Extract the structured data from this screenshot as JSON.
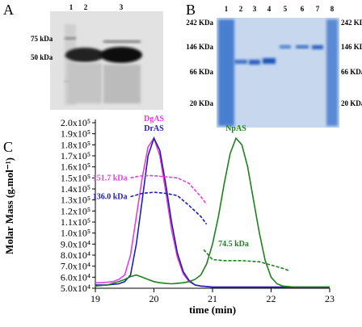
{
  "panels": {
    "a": {
      "letter": "A",
      "lanes": [
        "1",
        "2",
        "3"
      ],
      "markers": [
        "75 kDa",
        "50 kDa"
      ]
    },
    "b": {
      "letter": "B",
      "lanes": [
        "1",
        "2",
        "3",
        "4",
        "5",
        "6",
        "7",
        "8"
      ],
      "markers": [
        "242 KDa",
        "146 KDa",
        "66 KDa",
        "20 KDa"
      ]
    },
    "c": {
      "letter": "C"
    }
  },
  "chart_data": {
    "type": "line",
    "y_label": "Molar Mass (g.mol⁻¹)",
    "x_label": "time (min)",
    "xlim": [
      19,
      23
    ],
    "xticks": [
      19,
      20,
      21,
      22,
      23
    ],
    "ylim": [
      50000,
      200000
    ],
    "yticks": [
      {
        "value": 50000,
        "label": "5.0x10⁴"
      },
      {
        "value": 60000,
        "label": "6.0x10⁴"
      },
      {
        "value": 70000,
        "label": "7.0x10⁴"
      },
      {
        "value": 80000,
        "label": "8.0x10⁴"
      },
      {
        "value": 90000,
        "label": "9.0x10⁴"
      },
      {
        "value": 100000,
        "label": "1.0x10⁵"
      },
      {
        "value": 110000,
        "label": "1.1x10⁵"
      },
      {
        "value": 120000,
        "label": "1.2x10⁵"
      },
      {
        "value": 130000,
        "label": "1.3x10⁵"
      },
      {
        "value": 140000,
        "label": "1.4x10⁵"
      },
      {
        "value": 150000,
        "label": "1.5x10⁵"
      },
      {
        "value": 160000,
        "label": "1.6x10⁵"
      },
      {
        "value": 170000,
        "label": "1.7x10⁵"
      },
      {
        "value": 180000,
        "label": "1.8x10⁵"
      },
      {
        "value": 190000,
        "label": "1.9x10⁵"
      },
      {
        "value": 200000,
        "label": "2.0x10⁵"
      }
    ],
    "x": [
      19,
      19.1,
      19.2,
      19.3,
      19.4,
      19.5,
      19.6,
      19.7,
      19.8,
      19.9,
      20,
      20.1,
      20.2,
      20.3,
      20.4,
      20.5,
      20.6,
      20.7,
      20.8,
      20.9,
      21,
      21.1,
      21.2,
      21.3,
      21.4,
      21.5,
      21.6,
      21.7,
      21.8,
      21.9,
      22,
      22.1,
      22.2,
      22.3,
      22.4,
      22.5,
      22.6,
      22.7,
      22.8,
      22.9,
      23
    ],
    "series": [
      {
        "name": "DgAS",
        "color": "#e040e0",
        "dash": false,
        "values": [
          55000,
          55000,
          55500,
          56000,
          58000,
          62000,
          80000,
          115000,
          150000,
          178000,
          186000,
          170000,
          138000,
          103000,
          78000,
          63000,
          56000,
          53000,
          52000,
          51500,
          51000,
          51000,
          51000,
          51000,
          51000,
          51000,
          51000,
          51000,
          51000,
          51000,
          51000,
          51000,
          51000,
          51000,
          51000,
          51000,
          51000,
          51000,
          51000,
          51000,
          51000
        ]
      },
      {
        "name": "DrAS",
        "color": "#2020b0",
        "dash": false,
        "values": [
          53000,
          53000,
          53000,
          53500,
          54000,
          56000,
          62000,
          90000,
          130000,
          170000,
          186000,
          175000,
          145000,
          110000,
          82000,
          65000,
          57000,
          53000,
          52000,
          51500,
          51000,
          51000,
          51000,
          51000,
          51000,
          51000,
          51000,
          51000,
          51000,
          51000,
          51000,
          51000,
          51000,
          51000,
          51000,
          51000,
          51000,
          51000,
          51000,
          51000,
          51000
        ]
      },
      {
        "name": "NpAS",
        "color": "#208020",
        "dash": false,
        "values": [
          52000,
          52500,
          53000,
          54500,
          56000,
          58000,
          60500,
          62000,
          60000,
          58000,
          56000,
          55000,
          54500,
          54000,
          54500,
          55000,
          56000,
          58000,
          62000,
          72000,
          90000,
          115000,
          145000,
          172000,
          186000,
          180000,
          160000,
          130000,
          100000,
          75000,
          60000,
          54000,
          52000,
          51500,
          51000,
          51000,
          51000,
          51000,
          51000,
          51000,
          51000
        ]
      },
      {
        "name": "151.7 kDa",
        "color": "#e040e0",
        "dash": true,
        "x": [
          19.6,
          19.8,
          20,
          20.2,
          20.4,
          20.6,
          20.8,
          20.9
        ],
        "values": [
          150000,
          152000,
          152000,
          151000,
          150000,
          145000,
          133000,
          126000
        ]
      },
      {
        "name": "136.0 kDa",
        "color": "#2020b0",
        "dash": true,
        "x": [
          19.6,
          19.8,
          20,
          20.2,
          20.4,
          20.6,
          20.8,
          20.9
        ],
        "values": [
          133000,
          136000,
          137000,
          136000,
          134000,
          125000,
          115000,
          108000
        ]
      },
      {
        "name": "74.5 kDa",
        "color": "#208020",
        "dash": true,
        "x": [
          20.85,
          21,
          21.2,
          21.5,
          21.8,
          22,
          22.2,
          22.3
        ],
        "values": [
          85000,
          76000,
          75000,
          75000,
          74000,
          71000,
          68000,
          66000
        ]
      }
    ]
  }
}
